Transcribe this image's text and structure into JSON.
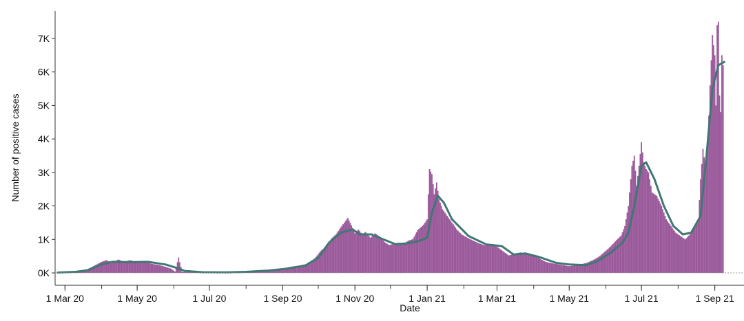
{
  "chart_data": {
    "type": "bar",
    "xlabel": "Date",
    "ylabel": "Number of positive cases",
    "x_range": [
      "2020-02-24",
      "2021-09-21"
    ],
    "ylim": [
      0,
      7800
    ],
    "y_ticks": [
      {
        "value": 0,
        "label": "0K"
      },
      {
        "value": 1000,
        "label": "1K"
      },
      {
        "value": 2000,
        "label": "2K"
      },
      {
        "value": 3000,
        "label": "3K"
      },
      {
        "value": 4000,
        "label": "4K"
      },
      {
        "value": 5000,
        "label": "5K"
      },
      {
        "value": 6000,
        "label": "6K"
      },
      {
        "value": 7000,
        "label": "7K"
      }
    ],
    "x_ticks": [
      {
        "date": "2020-03-01",
        "label": "1 Mar 20"
      },
      {
        "date": "2020-05-01",
        "label": "1 May 20"
      },
      {
        "date": "2020-07-01",
        "label": "1 Jul 20"
      },
      {
        "date": "2020-09-01",
        "label": "1 Sep 20"
      },
      {
        "date": "2020-11-01",
        "label": "1 Nov 20"
      },
      {
        "date": "2021-01-01",
        "label": "1 Jan 21"
      },
      {
        "date": "2021-03-01",
        "label": "1 Mar 21"
      },
      {
        "date": "2021-05-01",
        "label": "1 May 21"
      },
      {
        "date": "2021-07-01",
        "label": "1 Jul 21"
      },
      {
        "date": "2021-09-01",
        "label": "1 Sep 21"
      }
    ],
    "grid": false,
    "colors": {
      "bars": "#9b5a9b",
      "trend": "#3f7773"
    },
    "series": [
      {
        "type": "bar",
        "points": [
          [
            "2020-02-25",
            5
          ],
          [
            "2020-03-05",
            15
          ],
          [
            "2020-03-12",
            30
          ],
          [
            "2020-03-18",
            70
          ],
          [
            "2020-03-25",
            200
          ],
          [
            "2020-04-01",
            330
          ],
          [
            "2020-04-05",
            380
          ],
          [
            "2020-04-10",
            300
          ],
          [
            "2020-04-15",
            400
          ],
          [
            "2020-04-20",
            330
          ],
          [
            "2020-04-25",
            380
          ],
          [
            "2020-05-01",
            320
          ],
          [
            "2020-05-05",
            360
          ],
          [
            "2020-05-10",
            300
          ],
          [
            "2020-05-15",
            260
          ],
          [
            "2020-05-20",
            230
          ],
          [
            "2020-05-25",
            180
          ],
          [
            "2020-05-30",
            120
          ],
          [
            "2020-06-02",
            40
          ],
          [
            "2020-06-05",
            460
          ],
          [
            "2020-06-08",
            30
          ],
          [
            "2020-06-15",
            20
          ],
          [
            "2020-06-25",
            10
          ],
          [
            "2020-07-10",
            10
          ],
          [
            "2020-07-25",
            20
          ],
          [
            "2020-08-05",
            40
          ],
          [
            "2020-08-15",
            70
          ],
          [
            "2020-08-25",
            100
          ],
          [
            "2020-09-01",
            130
          ],
          [
            "2020-09-07",
            180
          ],
          [
            "2020-09-15",
            220
          ],
          [
            "2020-09-22",
            270
          ],
          [
            "2020-09-28",
            430
          ],
          [
            "2020-10-03",
            650
          ],
          [
            "2020-10-08",
            800
          ],
          [
            "2020-10-12",
            1020
          ],
          [
            "2020-10-16",
            1150
          ],
          [
            "2020-10-20",
            1360
          ],
          [
            "2020-10-23",
            1500
          ],
          [
            "2020-10-26",
            1640
          ],
          [
            "2020-10-29",
            1420
          ],
          [
            "2020-11-01",
            1180
          ],
          [
            "2020-11-04",
            1300
          ],
          [
            "2020-11-07",
            1150
          ],
          [
            "2020-11-10",
            1220
          ],
          [
            "2020-11-14",
            1050
          ],
          [
            "2020-11-18",
            1180
          ],
          [
            "2020-11-22",
            1080
          ],
          [
            "2020-11-26",
            920
          ],
          [
            "2020-11-30",
            830
          ],
          [
            "2020-12-04",
            880
          ],
          [
            "2020-12-08",
            900
          ],
          [
            "2020-12-12",
            870
          ],
          [
            "2020-12-16",
            960
          ],
          [
            "2020-12-20",
            1010
          ],
          [
            "2020-12-24",
            1280
          ],
          [
            "2020-12-29",
            1440
          ],
          [
            "2021-01-01",
            1600
          ],
          [
            "2021-01-03",
            3100
          ],
          [
            "2021-01-05",
            2950
          ],
          [
            "2021-01-07",
            2350
          ],
          [
            "2021-01-09",
            2700
          ],
          [
            "2021-01-11",
            2200
          ],
          [
            "2021-01-14",
            1900
          ],
          [
            "2021-01-18",
            1700
          ],
          [
            "2021-01-22",
            1500
          ],
          [
            "2021-01-26",
            1300
          ],
          [
            "2021-01-30",
            1150
          ],
          [
            "2021-02-04",
            1050
          ],
          [
            "2021-02-09",
            960
          ],
          [
            "2021-02-14",
            880
          ],
          [
            "2021-02-19",
            820
          ],
          [
            "2021-02-24",
            850
          ],
          [
            "2021-03-01",
            780
          ],
          [
            "2021-03-06",
            650
          ],
          [
            "2021-03-11",
            520
          ],
          [
            "2021-03-16",
            580
          ],
          [
            "2021-03-21",
            610
          ],
          [
            "2021-03-26",
            580
          ],
          [
            "2021-03-31",
            530
          ],
          [
            "2021-04-06",
            430
          ],
          [
            "2021-04-11",
            330
          ],
          [
            "2021-04-16",
            290
          ],
          [
            "2021-04-21",
            260
          ],
          [
            "2021-04-26",
            230
          ],
          [
            "2021-05-01",
            200
          ],
          [
            "2021-05-06",
            220
          ],
          [
            "2021-05-11",
            260
          ],
          [
            "2021-05-16",
            300
          ],
          [
            "2021-05-21",
            380
          ],
          [
            "2021-05-26",
            480
          ],
          [
            "2021-05-31",
            630
          ],
          [
            "2021-06-05",
            790
          ],
          [
            "2021-06-10",
            980
          ],
          [
            "2021-06-14",
            1120
          ],
          [
            "2021-06-17",
            1400
          ],
          [
            "2021-06-20",
            2000
          ],
          [
            "2021-06-23",
            3200
          ],
          [
            "2021-06-25",
            3500
          ],
          [
            "2021-06-27",
            2600
          ],
          [
            "2021-06-29",
            3200
          ],
          [
            "2021-07-01",
            3900
          ],
          [
            "2021-07-03",
            3300
          ],
          [
            "2021-07-05",
            3100
          ],
          [
            "2021-07-07",
            3000
          ],
          [
            "2021-07-10",
            2400
          ],
          [
            "2021-07-14",
            2300
          ],
          [
            "2021-07-18",
            2000
          ],
          [
            "2021-07-22",
            1600
          ],
          [
            "2021-07-26",
            1400
          ],
          [
            "2021-07-30",
            1200
          ],
          [
            "2021-08-03",
            1100
          ],
          [
            "2021-08-07",
            1000
          ],
          [
            "2021-08-11",
            1150
          ],
          [
            "2021-08-15",
            1400
          ],
          [
            "2021-08-18",
            1550
          ],
          [
            "2021-08-20",
            2800
          ],
          [
            "2021-08-22",
            3700
          ],
          [
            "2021-08-24",
            3200
          ],
          [
            "2021-08-26",
            3800
          ],
          [
            "2021-08-28",
            5600
          ],
          [
            "2021-08-30",
            7100
          ],
          [
            "2021-09-01",
            6500
          ],
          [
            "2021-09-02",
            5000
          ],
          [
            "2021-09-03",
            7400
          ],
          [
            "2021-09-04",
            7500
          ],
          [
            "2021-09-05",
            5300
          ],
          [
            "2021-09-06",
            4800
          ],
          [
            "2021-09-07",
            6500
          ],
          [
            "2021-09-08",
            6200
          ],
          [
            "2021-09-09",
            5600
          ]
        ]
      },
      {
        "type": "line",
        "points": [
          [
            "2020-02-24",
            10
          ],
          [
            "2020-03-10",
            30
          ],
          [
            "2020-03-20",
            80
          ],
          [
            "2020-04-01",
            250
          ],
          [
            "2020-04-10",
            330
          ],
          [
            "2020-04-25",
            320
          ],
          [
            "2020-05-10",
            330
          ],
          [
            "2020-05-25",
            250
          ],
          [
            "2020-06-05",
            130
          ],
          [
            "2020-06-10",
            60
          ],
          [
            "2020-06-25",
            20
          ],
          [
            "2020-07-15",
            15
          ],
          [
            "2020-08-01",
            30
          ],
          [
            "2020-08-20",
            70
          ],
          [
            "2020-09-05",
            130
          ],
          [
            "2020-09-20",
            220
          ],
          [
            "2020-10-01",
            450
          ],
          [
            "2020-10-10",
            900
          ],
          [
            "2020-10-20",
            1200
          ],
          [
            "2020-10-30",
            1300
          ],
          [
            "2020-11-05",
            1150
          ],
          [
            "2020-11-15",
            1150
          ],
          [
            "2020-11-25",
            1000
          ],
          [
            "2020-12-05",
            860
          ],
          [
            "2020-12-15",
            880
          ],
          [
            "2020-12-25",
            950
          ],
          [
            "2021-01-01",
            1050
          ],
          [
            "2021-01-05",
            1800
          ],
          [
            "2021-01-10",
            2300
          ],
          [
            "2021-01-15",
            2100
          ],
          [
            "2021-01-22",
            1600
          ],
          [
            "2021-02-05",
            1100
          ],
          [
            "2021-02-20",
            850
          ],
          [
            "2021-03-05",
            800
          ],
          [
            "2021-03-15",
            550
          ],
          [
            "2021-03-25",
            580
          ],
          [
            "2021-04-05",
            480
          ],
          [
            "2021-04-20",
            300
          ],
          [
            "2021-05-01",
            250
          ],
          [
            "2021-05-15",
            230
          ],
          [
            "2021-05-25",
            350
          ],
          [
            "2021-06-05",
            600
          ],
          [
            "2021-06-15",
            900
          ],
          [
            "2021-06-20",
            1200
          ],
          [
            "2021-06-25",
            2000
          ],
          [
            "2021-07-01",
            3200
          ],
          [
            "2021-07-05",
            3300
          ],
          [
            "2021-07-12",
            2800
          ],
          [
            "2021-07-20",
            2000
          ],
          [
            "2021-07-28",
            1400
          ],
          [
            "2021-08-05",
            1150
          ],
          [
            "2021-08-12",
            1200
          ],
          [
            "2021-08-20",
            1700
          ],
          [
            "2021-08-25",
            3500
          ],
          [
            "2021-08-30",
            5500
          ],
          [
            "2021-09-04",
            6200
          ],
          [
            "2021-09-09",
            6300
          ]
        ]
      }
    ]
  }
}
